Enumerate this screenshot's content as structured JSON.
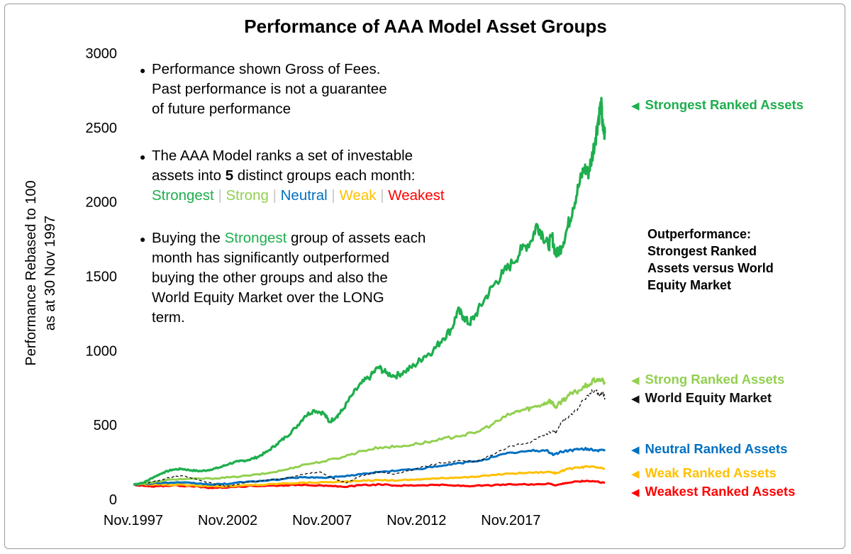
{
  "chart_data": {
    "type": "line",
    "title": "Performance of AAA Model Asset Groups",
    "ylabel_line1": "Performance Rebased to 100",
    "ylabel_line2": "as at 30 Nov 1997",
    "xlabel": "",
    "ylim": [
      0,
      3000
    ],
    "yticks": [
      "0",
      "500",
      "1000",
      "1500",
      "2000",
      "2500",
      "3000"
    ],
    "xticks": [
      "Nov.1997",
      "Nov.2002",
      "Nov.2007",
      "Nov.2012",
      "Nov.2017"
    ],
    "xtick_years": [
      1997.917,
      2002.917,
      2007.917,
      2012.917,
      2017.917
    ],
    "xrange": [
      1997.917,
      2022.9
    ],
    "series": [
      {
        "name": "Strongest Ranked Assets",
        "color": "#1EAE4E",
        "width": 3.3,
        "dash": "",
        "points": [
          [
            1997.92,
            100
          ],
          [
            1998.5,
            115
          ],
          [
            1999.0,
            150
          ],
          [
            1999.5,
            180
          ],
          [
            2000.0,
            200
          ],
          [
            2000.5,
            205
          ],
          [
            2001.0,
            195
          ],
          [
            2001.5,
            190
          ],
          [
            2002.0,
            200
          ],
          [
            2002.5,
            215
          ],
          [
            2003.0,
            240
          ],
          [
            2003.5,
            255
          ],
          [
            2004.0,
            265
          ],
          [
            2004.5,
            285
          ],
          [
            2005.0,
            320
          ],
          [
            2005.5,
            370
          ],
          [
            2006.0,
            420
          ],
          [
            2006.5,
            480
          ],
          [
            2007.0,
            560
          ],
          [
            2007.5,
            600
          ],
          [
            2008.0,
            580
          ],
          [
            2008.3,
            520
          ],
          [
            2008.7,
            560
          ],
          [
            2009.0,
            600
          ],
          [
            2009.5,
            700
          ],
          [
            2010.0,
            780
          ],
          [
            2010.5,
            830
          ],
          [
            2010.9,
            890
          ],
          [
            2011.3,
            850
          ],
          [
            2011.8,
            830
          ],
          [
            2012.3,
            860
          ],
          [
            2012.8,
            900
          ],
          [
            2013.3,
            960
          ],
          [
            2013.8,
            1000
          ],
          [
            2014.3,
            1080
          ],
          [
            2014.8,
            1150
          ],
          [
            2015.1,
            1270
          ],
          [
            2015.4,
            1230
          ],
          [
            2015.7,
            1180
          ],
          [
            2016.0,
            1230
          ],
          [
            2016.5,
            1340
          ],
          [
            2017.0,
            1440
          ],
          [
            2017.5,
            1520
          ],
          [
            2018.0,
            1590
          ],
          [
            2018.5,
            1680
          ],
          [
            2019.0,
            1740
          ],
          [
            2019.3,
            1850
          ],
          [
            2019.6,
            1780
          ],
          [
            2019.9,
            1700
          ],
          [
            2020.1,
            1770
          ],
          [
            2020.3,
            1640
          ],
          [
            2020.6,
            1700
          ],
          [
            2020.9,
            1820
          ],
          [
            2021.2,
            1960
          ],
          [
            2021.5,
            2100
          ],
          [
            2021.8,
            2230
          ],
          [
            2022.0,
            2190
          ],
          [
            2022.2,
            2290
          ],
          [
            2022.4,
            2430
          ],
          [
            2022.55,
            2560
          ],
          [
            2022.7,
            2660
          ],
          [
            2022.8,
            2480
          ],
          [
            2022.9,
            2460
          ]
        ]
      },
      {
        "name": "Strong Ranked Assets",
        "color": "#92D050",
        "width": 3.0,
        "dash": "",
        "points": [
          [
            1997.92,
            100
          ],
          [
            1999.0,
            115
          ],
          [
            2000.0,
            135
          ],
          [
            2001.0,
            138
          ],
          [
            2002.0,
            140
          ],
          [
            2003.0,
            148
          ],
          [
            2004.0,
            160
          ],
          [
            2005.0,
            175
          ],
          [
            2006.0,
            200
          ],
          [
            2007.0,
            235
          ],
          [
            2008.0,
            255
          ],
          [
            2009.0,
            285
          ],
          [
            2010.0,
            325
          ],
          [
            2011.0,
            350
          ],
          [
            2012.0,
            355
          ],
          [
            2013.0,
            375
          ],
          [
            2014.0,
            395
          ],
          [
            2015.0,
            425
          ],
          [
            2016.0,
            445
          ],
          [
            2017.0,
            510
          ],
          [
            2018.0,
            580
          ],
          [
            2018.5,
            600
          ],
          [
            2019.0,
            615
          ],
          [
            2019.6,
            640
          ],
          [
            2020.0,
            665
          ],
          [
            2020.3,
            620
          ],
          [
            2020.6,
            660
          ],
          [
            2021.0,
            700
          ],
          [
            2021.5,
            730
          ],
          [
            2022.0,
            770
          ],
          [
            2022.5,
            810
          ],
          [
            2022.9,
            790
          ]
        ]
      },
      {
        "name": "World Equity Market",
        "color": "#111111",
        "width": 1.3,
        "dash": "4,3",
        "points": [
          [
            1997.92,
            100
          ],
          [
            1999.0,
            120
          ],
          [
            2000.0,
            150
          ],
          [
            2000.5,
            160
          ],
          [
            2001.5,
            125
          ],
          [
            2002.5,
            95
          ],
          [
            2003.0,
            90
          ],
          [
            2004.0,
            115
          ],
          [
            2005.0,
            130
          ],
          [
            2006.0,
            145
          ],
          [
            2007.0,
            170
          ],
          [
            2007.8,
            185
          ],
          [
            2008.5,
            140
          ],
          [
            2009.2,
            110
          ],
          [
            2010.0,
            160
          ],
          [
            2011.0,
            185
          ],
          [
            2011.8,
            170
          ],
          [
            2013.0,
            210
          ],
          [
            2014.0,
            240
          ],
          [
            2015.0,
            260
          ],
          [
            2016.0,
            255
          ],
          [
            2017.0,
            300
          ],
          [
            2018.0,
            360
          ],
          [
            2018.8,
            380
          ],
          [
            2019.5,
            420
          ],
          [
            2020.2,
            460
          ],
          [
            2020.3,
            440
          ],
          [
            2020.6,
            520
          ],
          [
            2021.0,
            560
          ],
          [
            2021.5,
            620
          ],
          [
            2022.0,
            700
          ],
          [
            2022.4,
            740
          ],
          [
            2022.6,
            690
          ],
          [
            2022.8,
            720
          ],
          [
            2022.9,
            680
          ]
        ]
      },
      {
        "name": "Neutral Ranked Assets",
        "color": "#0070C0",
        "width": 3.0,
        "dash": "",
        "points": [
          [
            1997.92,
            100
          ],
          [
            1999.0,
            110
          ],
          [
            2000.0,
            112
          ],
          [
            2001.0,
            110
          ],
          [
            2002.0,
            100
          ],
          [
            2003.0,
            105
          ],
          [
            2004.0,
            120
          ],
          [
            2005.0,
            125
          ],
          [
            2006.0,
            140
          ],
          [
            2007.0,
            150
          ],
          [
            2008.0,
            145
          ],
          [
            2009.0,
            155
          ],
          [
            2010.0,
            170
          ],
          [
            2011.0,
            185
          ],
          [
            2012.0,
            195
          ],
          [
            2013.0,
            205
          ],
          [
            2014.0,
            220
          ],
          [
            2015.0,
            240
          ],
          [
            2016.0,
            255
          ],
          [
            2017.0,
            285
          ],
          [
            2018.0,
            315
          ],
          [
            2019.0,
            325
          ],
          [
            2019.8,
            330
          ],
          [
            2020.2,
            300
          ],
          [
            2020.6,
            320
          ],
          [
            2021.0,
            330
          ],
          [
            2021.5,
            335
          ],
          [
            2022.0,
            340
          ],
          [
            2022.5,
            330
          ],
          [
            2022.9,
            325
          ]
        ]
      },
      {
        "name": "Weak Ranked Assets",
        "color": "#FFC000",
        "width": 3.0,
        "dash": "",
        "points": [
          [
            1997.92,
            100
          ],
          [
            1999.0,
            100
          ],
          [
            2000.0,
            98
          ],
          [
            2001.0,
            95
          ],
          [
            2002.0,
            90
          ],
          [
            2003.0,
            88
          ],
          [
            2004.0,
            95
          ],
          [
            2005.0,
            100
          ],
          [
            2006.0,
            108
          ],
          [
            2007.0,
            112
          ],
          [
            2008.0,
            115
          ],
          [
            2009.0,
            118
          ],
          [
            2010.0,
            125
          ],
          [
            2011.0,
            130
          ],
          [
            2012.0,
            128
          ],
          [
            2013.0,
            135
          ],
          [
            2014.0,
            140
          ],
          [
            2015.0,
            148
          ],
          [
            2016.0,
            150
          ],
          [
            2017.0,
            165
          ],
          [
            2018.0,
            175
          ],
          [
            2019.0,
            180
          ],
          [
            2020.0,
            185
          ],
          [
            2020.3,
            175
          ],
          [
            2020.8,
            200
          ],
          [
            2021.5,
            215
          ],
          [
            2022.0,
            220
          ],
          [
            2022.5,
            215
          ],
          [
            2022.9,
            205
          ]
        ]
      },
      {
        "name": "Weakest Ranked Assets",
        "color": "#FF0000",
        "width": 3.0,
        "dash": "",
        "points": [
          [
            1997.92,
            100
          ],
          [
            1998.5,
            90
          ],
          [
            1999.0,
            85
          ],
          [
            2000.0,
            95
          ],
          [
            2001.0,
            88
          ],
          [
            2002.0,
            78
          ],
          [
            2003.0,
            82
          ],
          [
            2004.0,
            90
          ],
          [
            2005.0,
            92
          ],
          [
            2006.0,
            95
          ],
          [
            2007.0,
            100
          ],
          [
            2008.0,
            90
          ],
          [
            2009.0,
            85
          ],
          [
            2010.0,
            95
          ],
          [
            2011.0,
            100
          ],
          [
            2012.0,
            92
          ],
          [
            2013.0,
            95
          ],
          [
            2014.0,
            98
          ],
          [
            2015.0,
            92
          ],
          [
            2016.0,
            90
          ],
          [
            2017.0,
            95
          ],
          [
            2018.0,
            100
          ],
          [
            2019.0,
            102
          ],
          [
            2020.0,
            105
          ],
          [
            2020.3,
            95
          ],
          [
            2020.8,
            110
          ],
          [
            2021.5,
            120
          ],
          [
            2022.0,
            125
          ],
          [
            2022.5,
            120
          ],
          [
            2022.9,
            110
          ]
        ]
      }
    ],
    "right_labels": [
      {
        "text": "Strongest Ranked Assets",
        "color": "#1EAE4E",
        "value": 2650
      },
      {
        "text": "Strong Ranked Assets",
        "color": "#92D050",
        "value": 810
      },
      {
        "text": "World Equity Market",
        "color": "#111111",
        "value": 690
      },
      {
        "text": "Neutral Ranked Assets",
        "color": "#0070C0",
        "value": 330
      },
      {
        "text": "Weak Ranked Assets",
        "color": "#FFC000",
        "value": 170
      },
      {
        "text": "Weakest Ranked Assets",
        "color": "#FF0000",
        "value": 50
      }
    ],
    "annotations": {
      "note1_line1": "Performance shown Gross of Fees.",
      "note1_line2": "Past performance is not a guarantee",
      "note1_line3": "of future performance",
      "note2_line1": "The AAA Model ranks a set of investable",
      "note2_line2_a": "assets into ",
      "note2_line2_b": "5",
      "note2_line2_c": " distinct groups each month:",
      "groups": [
        {
          "name": "Strongest",
          "color": "#1EAE4E"
        },
        {
          "name": "Strong",
          "color": "#92D050"
        },
        {
          "name": "Neutral",
          "color": "#0070C0"
        },
        {
          "name": "Weak",
          "color": "#FFC000"
        },
        {
          "name": "Weakest",
          "color": "#FF0000"
        }
      ],
      "separator": "|",
      "note3_line1_a": "Buying the ",
      "note3_line1_b": "Strongest",
      "note3_line1_c": " group of assets each",
      "note3_line2": "month has significantly outperformed",
      "note3_line3": "buying the other groups and also the",
      "note3_line4": "World Equity Market over the LONG",
      "note3_line5": "term.",
      "bullet": "●",
      "outperf_line1": "Outperformance:",
      "outperf_line2": "Strongest Ranked",
      "outperf_line3": "Assets versus World",
      "outperf_line4": "Equity Market",
      "marker": "◀"
    }
  }
}
